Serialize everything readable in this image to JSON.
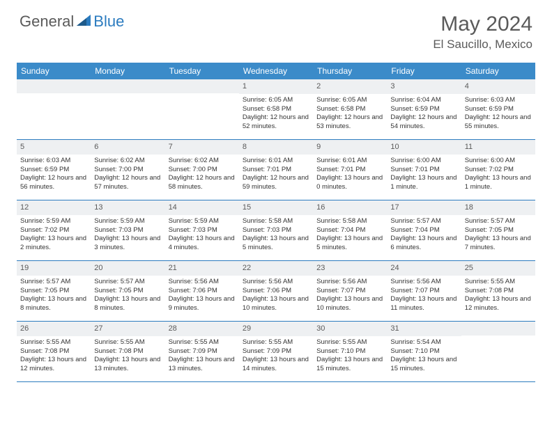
{
  "logo": {
    "general": "General",
    "blue": "Blue"
  },
  "title": "May 2024",
  "location": "El Saucillo, Mexico",
  "colors": {
    "header_bg": "#3b8bc9",
    "header_text": "#ffffff",
    "divider": "#2b7bbf",
    "daynum_bg": "#eef0f2",
    "text": "#333333",
    "logo_gray": "#5a5a5a",
    "logo_blue": "#2b7bbf"
  },
  "day_headers": [
    "Sunday",
    "Monday",
    "Tuesday",
    "Wednesday",
    "Thursday",
    "Friday",
    "Saturday"
  ],
  "weeks": [
    [
      {
        "n": "",
        "sr": "",
        "ss": "",
        "dl": ""
      },
      {
        "n": "",
        "sr": "",
        "ss": "",
        "dl": ""
      },
      {
        "n": "",
        "sr": "",
        "ss": "",
        "dl": ""
      },
      {
        "n": "1",
        "sr": "Sunrise: 6:05 AM",
        "ss": "Sunset: 6:58 PM",
        "dl": "Daylight: 12 hours and 52 minutes."
      },
      {
        "n": "2",
        "sr": "Sunrise: 6:05 AM",
        "ss": "Sunset: 6:58 PM",
        "dl": "Daylight: 12 hours and 53 minutes."
      },
      {
        "n": "3",
        "sr": "Sunrise: 6:04 AM",
        "ss": "Sunset: 6:59 PM",
        "dl": "Daylight: 12 hours and 54 minutes."
      },
      {
        "n": "4",
        "sr": "Sunrise: 6:03 AM",
        "ss": "Sunset: 6:59 PM",
        "dl": "Daylight: 12 hours and 55 minutes."
      }
    ],
    [
      {
        "n": "5",
        "sr": "Sunrise: 6:03 AM",
        "ss": "Sunset: 6:59 PM",
        "dl": "Daylight: 12 hours and 56 minutes."
      },
      {
        "n": "6",
        "sr": "Sunrise: 6:02 AM",
        "ss": "Sunset: 7:00 PM",
        "dl": "Daylight: 12 hours and 57 minutes."
      },
      {
        "n": "7",
        "sr": "Sunrise: 6:02 AM",
        "ss": "Sunset: 7:00 PM",
        "dl": "Daylight: 12 hours and 58 minutes."
      },
      {
        "n": "8",
        "sr": "Sunrise: 6:01 AM",
        "ss": "Sunset: 7:01 PM",
        "dl": "Daylight: 12 hours and 59 minutes."
      },
      {
        "n": "9",
        "sr": "Sunrise: 6:01 AM",
        "ss": "Sunset: 7:01 PM",
        "dl": "Daylight: 13 hours and 0 minutes."
      },
      {
        "n": "10",
        "sr": "Sunrise: 6:00 AM",
        "ss": "Sunset: 7:01 PM",
        "dl": "Daylight: 13 hours and 1 minute."
      },
      {
        "n": "11",
        "sr": "Sunrise: 6:00 AM",
        "ss": "Sunset: 7:02 PM",
        "dl": "Daylight: 13 hours and 1 minute."
      }
    ],
    [
      {
        "n": "12",
        "sr": "Sunrise: 5:59 AM",
        "ss": "Sunset: 7:02 PM",
        "dl": "Daylight: 13 hours and 2 minutes."
      },
      {
        "n": "13",
        "sr": "Sunrise: 5:59 AM",
        "ss": "Sunset: 7:03 PM",
        "dl": "Daylight: 13 hours and 3 minutes."
      },
      {
        "n": "14",
        "sr": "Sunrise: 5:59 AM",
        "ss": "Sunset: 7:03 PM",
        "dl": "Daylight: 13 hours and 4 minutes."
      },
      {
        "n": "15",
        "sr": "Sunrise: 5:58 AM",
        "ss": "Sunset: 7:03 PM",
        "dl": "Daylight: 13 hours and 5 minutes."
      },
      {
        "n": "16",
        "sr": "Sunrise: 5:58 AM",
        "ss": "Sunset: 7:04 PM",
        "dl": "Daylight: 13 hours and 5 minutes."
      },
      {
        "n": "17",
        "sr": "Sunrise: 5:57 AM",
        "ss": "Sunset: 7:04 PM",
        "dl": "Daylight: 13 hours and 6 minutes."
      },
      {
        "n": "18",
        "sr": "Sunrise: 5:57 AM",
        "ss": "Sunset: 7:05 PM",
        "dl": "Daylight: 13 hours and 7 minutes."
      }
    ],
    [
      {
        "n": "19",
        "sr": "Sunrise: 5:57 AM",
        "ss": "Sunset: 7:05 PM",
        "dl": "Daylight: 13 hours and 8 minutes."
      },
      {
        "n": "20",
        "sr": "Sunrise: 5:57 AM",
        "ss": "Sunset: 7:05 PM",
        "dl": "Daylight: 13 hours and 8 minutes."
      },
      {
        "n": "21",
        "sr": "Sunrise: 5:56 AM",
        "ss": "Sunset: 7:06 PM",
        "dl": "Daylight: 13 hours and 9 minutes."
      },
      {
        "n": "22",
        "sr": "Sunrise: 5:56 AM",
        "ss": "Sunset: 7:06 PM",
        "dl": "Daylight: 13 hours and 10 minutes."
      },
      {
        "n": "23",
        "sr": "Sunrise: 5:56 AM",
        "ss": "Sunset: 7:07 PM",
        "dl": "Daylight: 13 hours and 10 minutes."
      },
      {
        "n": "24",
        "sr": "Sunrise: 5:56 AM",
        "ss": "Sunset: 7:07 PM",
        "dl": "Daylight: 13 hours and 11 minutes."
      },
      {
        "n": "25",
        "sr": "Sunrise: 5:55 AM",
        "ss": "Sunset: 7:08 PM",
        "dl": "Daylight: 13 hours and 12 minutes."
      }
    ],
    [
      {
        "n": "26",
        "sr": "Sunrise: 5:55 AM",
        "ss": "Sunset: 7:08 PM",
        "dl": "Daylight: 13 hours and 12 minutes."
      },
      {
        "n": "27",
        "sr": "Sunrise: 5:55 AM",
        "ss": "Sunset: 7:08 PM",
        "dl": "Daylight: 13 hours and 13 minutes."
      },
      {
        "n": "28",
        "sr": "Sunrise: 5:55 AM",
        "ss": "Sunset: 7:09 PM",
        "dl": "Daylight: 13 hours and 13 minutes."
      },
      {
        "n": "29",
        "sr": "Sunrise: 5:55 AM",
        "ss": "Sunset: 7:09 PM",
        "dl": "Daylight: 13 hours and 14 minutes."
      },
      {
        "n": "30",
        "sr": "Sunrise: 5:55 AM",
        "ss": "Sunset: 7:10 PM",
        "dl": "Daylight: 13 hours and 15 minutes."
      },
      {
        "n": "31",
        "sr": "Sunrise: 5:54 AM",
        "ss": "Sunset: 7:10 PM",
        "dl": "Daylight: 13 hours and 15 minutes."
      },
      {
        "n": "",
        "sr": "",
        "ss": "",
        "dl": ""
      }
    ]
  ]
}
